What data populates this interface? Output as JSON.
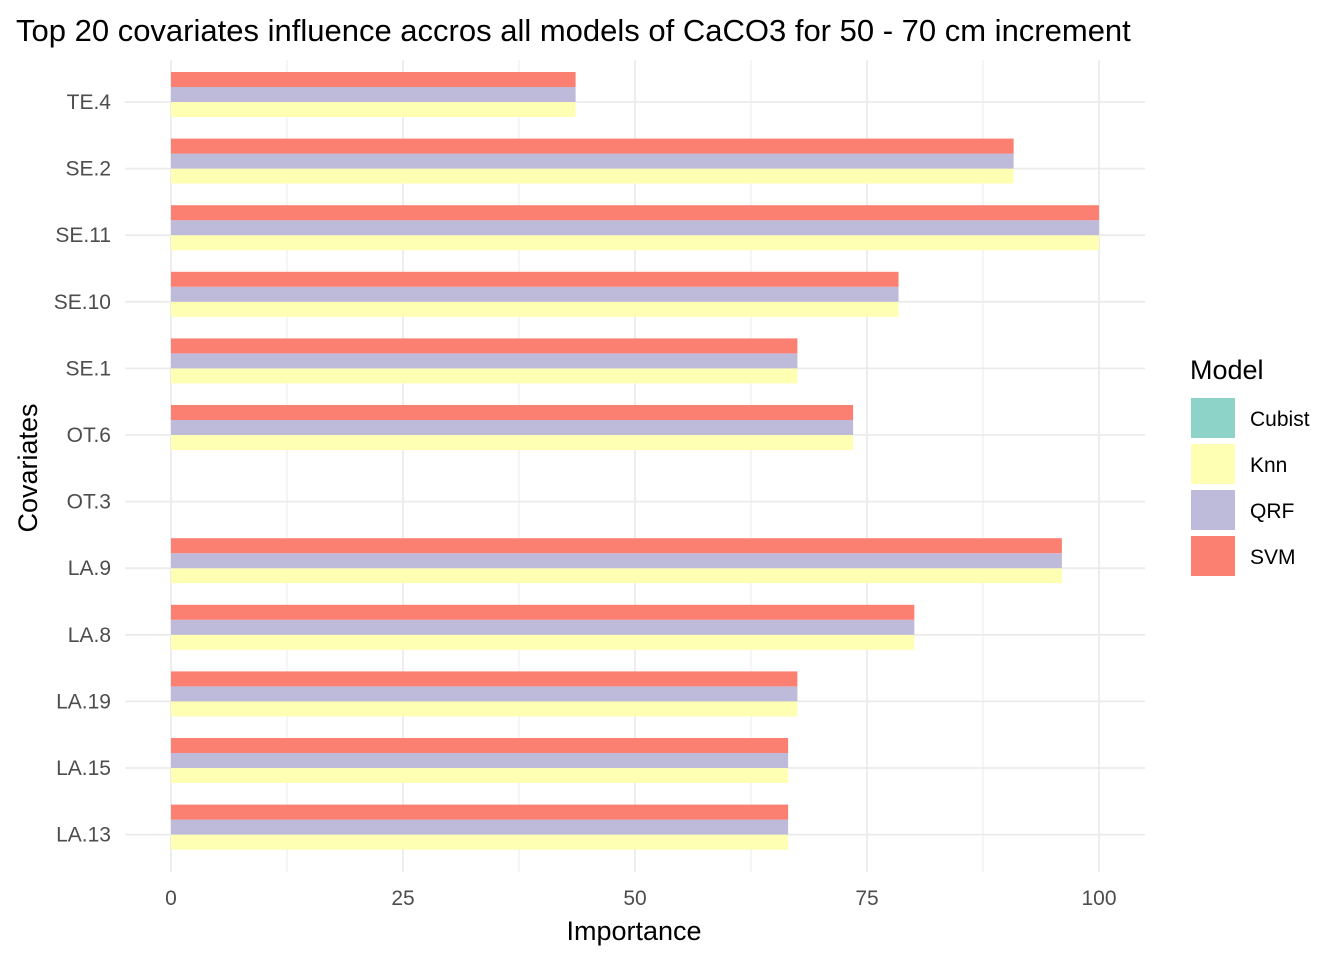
{
  "chart_data": {
    "type": "bar",
    "orientation": "horizontal",
    "title": "Top 20 covariates influence accros all models of CaCO3 for 50 - 70 cm increment",
    "xlabel": "Importance",
    "ylabel": "Covariates",
    "xlim": [
      0,
      105
    ],
    "xticks": [
      0,
      25,
      50,
      75,
      100
    ],
    "grid": true,
    "legend_title": "Model",
    "legend_position": "right",
    "categories": [
      "TE.4",
      "SE.2",
      "SE.11",
      "SE.10",
      "SE.1",
      "OT.6",
      "OT.3",
      "LA.9",
      "LA.8",
      "LA.19",
      "LA.15",
      "LA.13"
    ],
    "series": [
      {
        "name": "Cubist",
        "color": "#8DD3C7",
        "values": [
          0,
          0,
          0,
          0,
          0,
          0,
          0,
          0,
          0,
          0,
          0,
          0
        ]
      },
      {
        "name": "Knn",
        "color": "#FFFFB3",
        "values": [
          43.6,
          90.8,
          100,
          78.4,
          67.5,
          73.5,
          0,
          96,
          80.1,
          67.5,
          66.5,
          66.5
        ]
      },
      {
        "name": "QRF",
        "color": "#BEBADA",
        "values": [
          43.6,
          90.8,
          100,
          78.4,
          67.5,
          73.5,
          0,
          96,
          80.1,
          67.5,
          66.5,
          66.5
        ]
      },
      {
        "name": "SVM",
        "color": "#FB8072",
        "values": [
          43.6,
          90.8,
          100,
          78.4,
          67.5,
          73.5,
          0,
          96,
          80.1,
          67.5,
          66.5,
          66.5
        ]
      }
    ]
  }
}
